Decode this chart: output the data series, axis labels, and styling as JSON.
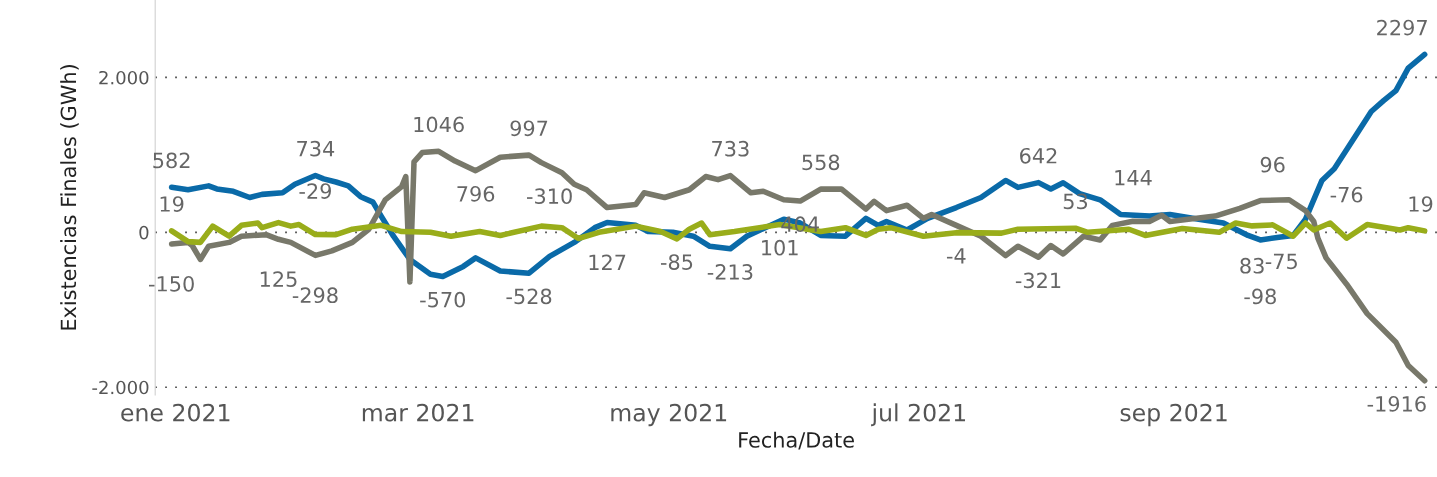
{
  "chart_data": {
    "type": "line",
    "xlabel": "Fecha/Date",
    "ylabel": "Existencias Finales (GWh)",
    "xlim": [
      "2020-12-27",
      "2021-11-04"
    ],
    "ylim": [
      -2100,
      3000
    ],
    "xticks": [
      {
        "value": "2021-01-01",
        "label": "ene 2021"
      },
      {
        "value": "2021-03-01",
        "label": "mar 2021"
      },
      {
        "value": "2021-05-01",
        "label": "may 2021"
      },
      {
        "value": "2021-07-01",
        "label": "jul 2021"
      },
      {
        "value": "2021-09-01",
        "label": "sep 2021"
      }
    ],
    "yticks": [
      {
        "value": -2000,
        "label": "-2.000"
      },
      0,
      {
        "value": 2000,
        "label": "2.000"
      }
    ],
    "grid": "y",
    "marker": "none",
    "line_style": "solid",
    "series": [
      {
        "color": "#0a6aa8",
        "x": [
          "2020-12-31",
          "2021-01-04",
          "2021-01-09",
          "2021-01-11",
          "2021-01-15",
          "2021-01-19",
          "2021-01-22",
          "2021-01-27",
          "2021-01-30",
          "2021-02-04",
          "2021-02-06",
          "2021-02-09",
          "2021-02-12",
          "2021-02-15",
          "2021-02-18",
          "2021-02-20",
          "2021-02-23",
          "2021-02-27",
          "2021-03-04",
          "2021-03-07",
          "2021-03-12",
          "2021-03-15",
          "2021-03-21",
          "2021-03-28",
          "2021-04-02",
          "2021-04-08",
          "2021-04-13",
          "2021-04-16",
          "2021-04-23",
          "2021-04-26",
          "2021-05-02",
          "2021-05-07",
          "2021-05-11",
          "2021-05-16",
          "2021-05-20",
          "2021-05-29",
          "2021-06-02",
          "2021-06-07",
          "2021-06-13",
          "2021-06-18",
          "2021-06-21",
          "2021-06-23",
          "2021-06-28",
          "2021-07-03",
          "2021-07-10",
          "2021-07-16",
          "2021-07-22",
          "2021-07-25",
          "2021-07-30",
          "2021-08-02",
          "2021-08-05",
          "2021-08-09",
          "2021-08-14",
          "2021-08-19",
          "2021-08-26",
          "2021-08-31",
          "2021-09-07",
          "2021-09-13",
          "2021-09-19",
          "2021-09-22",
          "2021-09-27",
          "2021-09-30",
          "2021-10-03",
          "2021-10-07",
          "2021-10-10",
          "2021-10-15",
          "2021-10-19",
          "2021-10-22",
          "2021-10-25",
          "2021-10-28",
          "2021-11-01"
        ],
        "values": [
          582,
          550,
          600,
          560,
          530,
          450,
          490,
          510,
          620,
          734,
          690,
          650,
          600,
          460,
          390,
          210,
          -50,
          -350,
          -540,
          -570,
          -440,
          -330,
          -500,
          -528,
          -310,
          -130,
          60,
          127,
          90,
          10,
          0,
          -50,
          -180,
          -213,
          -50,
          170,
          120,
          -40,
          -50,
          180,
          90,
          140,
          30,
          180,
          320,
          450,
          670,
          580,
          642,
          560,
          640,
          500,
          420,
          230,
          210,
          230,
          170,
          120,
          -40,
          -98,
          -60,
          -40,
          170,
          670,
          820,
          1230,
          1560,
          1700,
          1830,
          2120,
          2297
        ]
      },
      {
        "color": "#78786a",
        "x": [
          "2020-12-31",
          "2021-01-04",
          "2021-01-05",
          "2021-01-07",
          "2021-01-09",
          "2021-01-14",
          "2021-01-17",
          "2021-01-23",
          "2021-01-26",
          "2021-01-29",
          "2021-02-04",
          "2021-02-08",
          "2021-02-13",
          "2021-02-17",
          "2021-02-21",
          "2021-02-25",
          "2021-02-26",
          "2021-02-27",
          "2021-02-28",
          "2021-03-02",
          "2021-03-06",
          "2021-03-10",
          "2021-03-15",
          "2021-03-21",
          "2021-03-28",
          "2021-03-31",
          "2021-04-05",
          "2021-04-08",
          "2021-04-11",
          "2021-04-16",
          "2021-04-23",
          "2021-04-25",
          "2021-04-30",
          "2021-05-06",
          "2021-05-10",
          "2021-05-13",
          "2021-05-16",
          "2021-05-21",
          "2021-05-24",
          "2021-05-29",
          "2021-06-02",
          "2021-06-07",
          "2021-06-12",
          "2021-06-18",
          "2021-06-20",
          "2021-06-23",
          "2021-06-28",
          "2021-07-02",
          "2021-07-04",
          "2021-07-10",
          "2021-07-16",
          "2021-07-22",
          "2021-07-25",
          "2021-07-30",
          "2021-08-02",
          "2021-08-05",
          "2021-08-10",
          "2021-08-14",
          "2021-08-17",
          "2021-08-22",
          "2021-08-26",
          "2021-08-29",
          "2021-08-31",
          "2021-09-11",
          "2021-09-17",
          "2021-09-22",
          "2021-09-29",
          "2021-10-03",
          "2021-10-05",
          "2021-10-06",
          "2021-10-08",
          "2021-10-13",
          "2021-10-18",
          "2021-10-25",
          "2021-10-28",
          "2021-11-01"
        ],
        "values": [
          -150,
          -130,
          -170,
          -350,
          -180,
          -130,
          -50,
          -30,
          -90,
          -130,
          -298,
          -240,
          -130,
          40,
          420,
          590,
          720,
          -640,
          910,
          1030,
          1046,
          920,
          796,
          970,
          997,
          900,
          770,
          620,
          550,
          320,
          360,
          510,
          450,
          550,
          720,
          680,
          733,
          510,
          530,
          420,
          404,
          558,
          560,
          300,
          400,
          280,
          350,
          180,
          230,
          90,
          -50,
          -300,
          -180,
          -321,
          -170,
          -280,
          -50,
          -100,
          90,
          144,
          140,
          220,
          140,
          210,
          310,
          410,
          420,
          280,
          140,
          -75,
          -330,
          -670,
          -1050,
          -1420,
          -1720,
          -1916
        ]
      },
      {
        "color": "#99ad1a",
        "x": [
          "2020-12-31",
          "2021-01-04",
          "2021-01-07",
          "2021-01-10",
          "2021-01-14",
          "2021-01-17",
          "2021-01-21",
          "2021-01-22",
          "2021-01-26",
          "2021-01-29",
          "2021-01-31",
          "2021-02-04",
          "2021-02-09",
          "2021-02-13",
          "2021-02-20",
          "2021-02-25",
          "2021-03-04",
          "2021-03-09",
          "2021-03-16",
          "2021-03-21",
          "2021-03-31",
          "2021-04-05",
          "2021-04-09",
          "2021-04-14",
          "2021-04-23",
          "2021-04-29",
          "2021-05-03",
          "2021-05-06",
          "2021-05-09",
          "2021-05-11",
          "2021-05-17",
          "2021-05-28",
          "2021-06-07",
          "2021-06-13",
          "2021-06-18",
          "2021-06-21",
          "2021-06-24",
          "2021-07-02",
          "2021-07-10",
          "2021-07-21",
          "2021-07-25",
          "2021-08-08",
          "2021-08-11",
          "2021-08-21",
          "2021-08-25",
          "2021-09-03",
          "2021-09-12",
          "2021-09-16",
          "2021-09-20",
          "2021-09-25",
          "2021-09-30",
          "2021-10-03",
          "2021-10-05",
          "2021-10-09",
          "2021-10-13",
          "2021-10-18",
          "2021-10-26",
          "2021-10-28",
          "2021-11-01"
        ],
        "values": [
          19,
          -120,
          -130,
          80,
          -50,
          90,
          120,
          60,
          125,
          80,
          100,
          -29,
          -30,
          40,
          90,
          10,
          0,
          -50,
          10,
          -40,
          80,
          60,
          -80,
          0,
          80,
          10,
          -85,
          40,
          120,
          -30,
          10,
          101,
          10,
          60,
          -40,
          40,
          60,
          -50,
          -4,
          -10,
          40,
          53,
          0,
          40,
          -40,
          50,
          0,
          120,
          83,
          96,
          -50,
          120,
          30,
          120,
          -76,
          100,
          30,
          60,
          19
        ]
      }
    ],
    "annotations": [
      {
        "text": "582",
        "x": "2020-12-31",
        "y": 582
      },
      {
        "text": "19",
        "x": "2020-12-31",
        "y": 19
      },
      {
        "text": "-150",
        "x": "2020-12-31",
        "y": -150
      },
      {
        "text": "734",
        "x": "2021-02-04",
        "y": 734
      },
      {
        "text": "125",
        "x": "2021-01-26",
        "y": 125
      },
      {
        "text": "-29",
        "x": "2021-02-04",
        "y": -29
      },
      {
        "text": "-298",
        "x": "2021-02-04",
        "y": -298
      },
      {
        "text": "1046",
        "x": "2021-03-06",
        "y": 1046
      },
      {
        "text": "796",
        "x": "2021-03-15",
        "y": 796
      },
      {
        "text": "-570",
        "x": "2021-03-07",
        "y": -570
      },
      {
        "text": "997",
        "x": "2021-03-28",
        "y": 997
      },
      {
        "text": "-528",
        "x": "2021-03-28",
        "y": -528
      },
      {
        "text": "127",
        "x": "2021-04-16",
        "y": 127
      },
      {
        "text": "-310",
        "x": "2021-04-02",
        "y": -310
      },
      {
        "text": "-85",
        "x": "2021-05-03",
        "y": -85
      },
      {
        "text": "733",
        "x": "2021-05-16",
        "y": 733
      },
      {
        "text": "-213",
        "x": "2021-05-16",
        "y": -213
      },
      {
        "text": "101",
        "x": "2021-05-28",
        "y": 101
      },
      {
        "text": "558",
        "x": "2021-06-07",
        "y": 558
      },
      {
        "text": "404",
        "x": "2021-06-02",
        "y": 404
      },
      {
        "text": "-4",
        "x": "2021-07-10",
        "y": -4
      },
      {
        "text": "642",
        "x": "2021-07-30",
        "y": 642
      },
      {
        "text": "53",
        "x": "2021-08-08",
        "y": 53
      },
      {
        "text": "-321",
        "x": "2021-07-30",
        "y": -321
      },
      {
        "text": "144",
        "x": "2021-08-22",
        "y": 144
      },
      {
        "text": "83",
        "x": "2021-09-20",
        "y": 83
      },
      {
        "text": "-98",
        "x": "2021-09-22",
        "y": -98
      },
      {
        "text": "96",
        "x": "2021-09-25",
        "y": 96
      },
      {
        "text": "-76",
        "x": "2021-10-13",
        "y": -76
      },
      {
        "text": "-75",
        "x": "2021-10-06",
        "y": -75
      },
      {
        "text": "2297",
        "x": "2021-11-01",
        "y": 2297
      },
      {
        "text": "19",
        "x": "2021-11-01",
        "y": 19
      },
      {
        "text": "-1916",
        "x": "2021-11-01",
        "y": -1916
      }
    ]
  }
}
